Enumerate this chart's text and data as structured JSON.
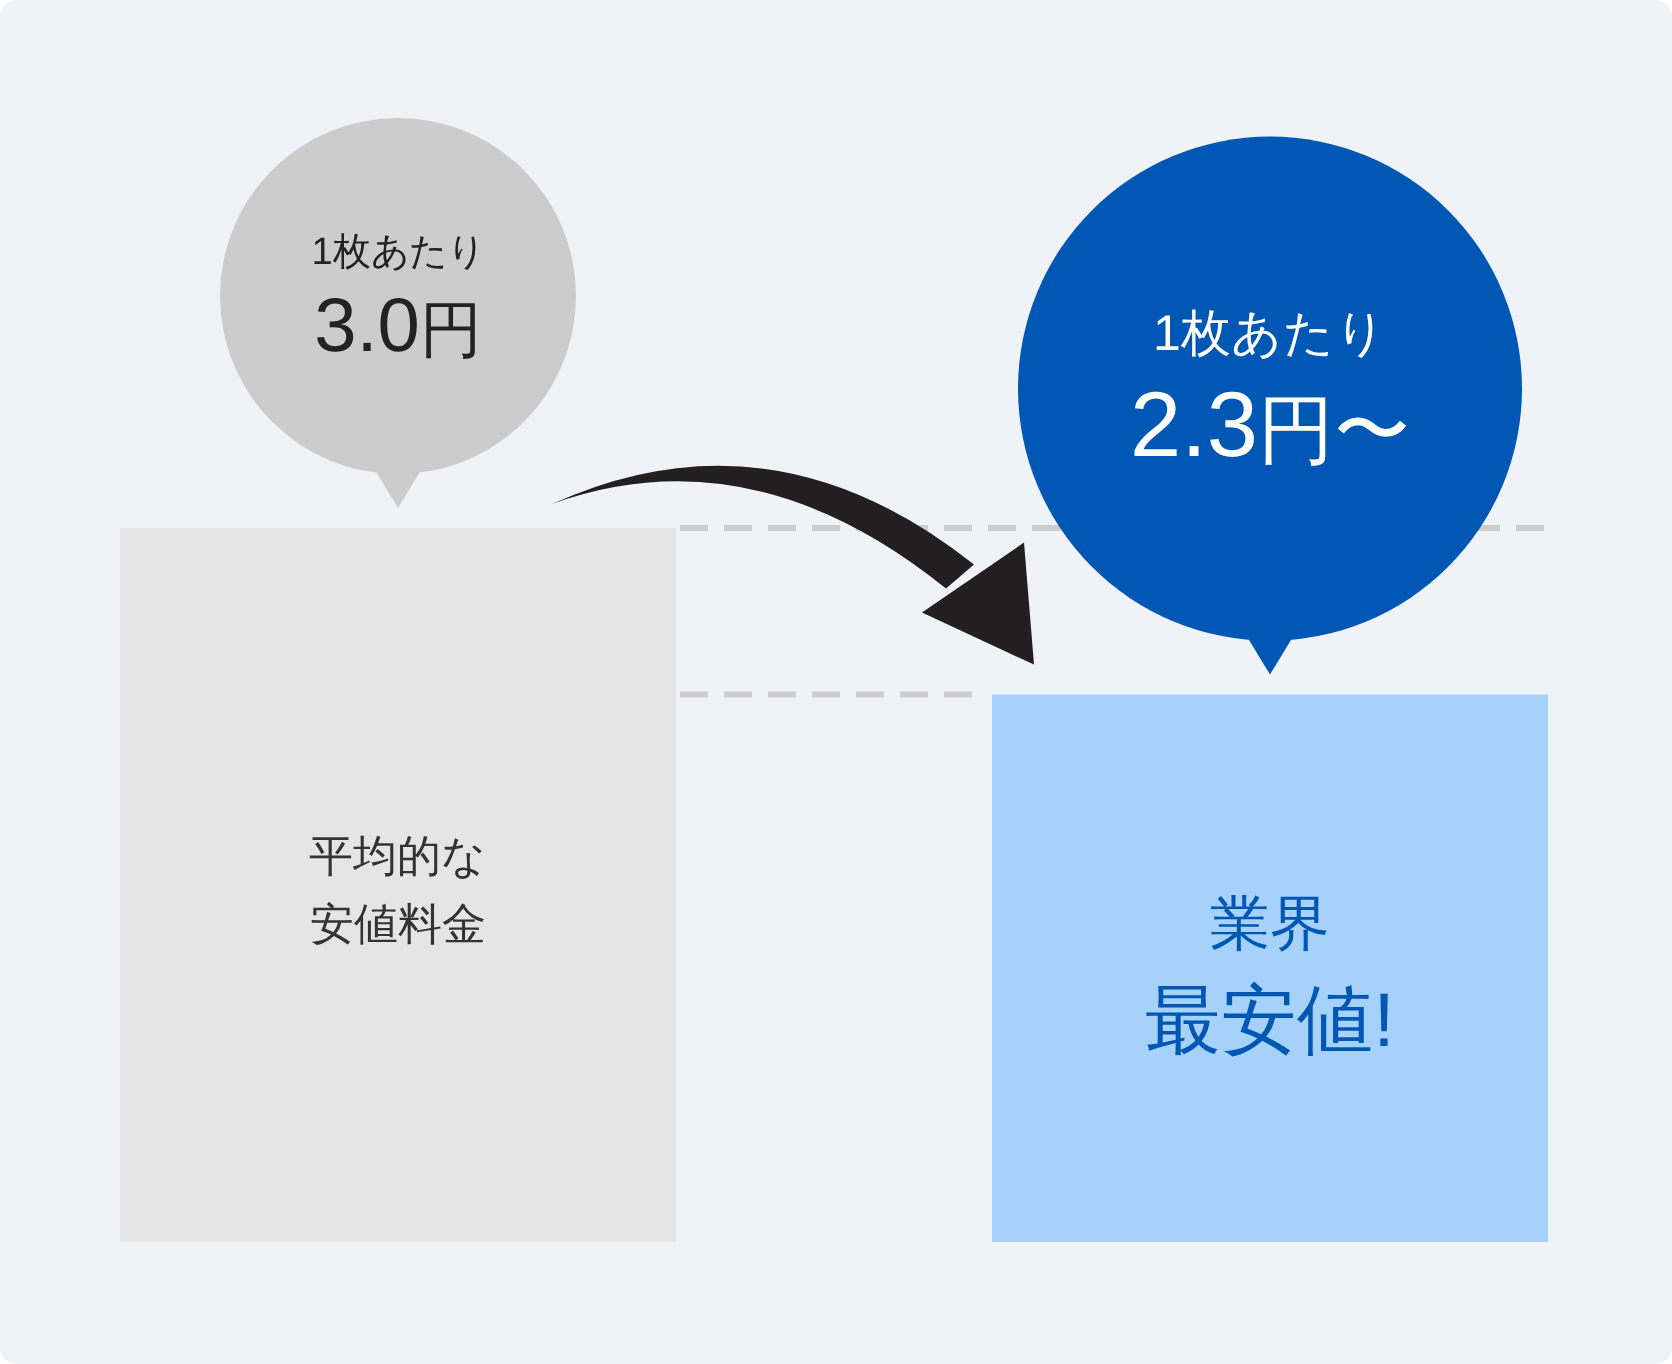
{
  "chart_data": {
    "type": "bar",
    "categories": [
      "平均的な安値料金",
      "業界最安値!"
    ],
    "values": [
      3.0,
      2.3
    ],
    "colors": [
      "#e5e5e5",
      "#a6d1fb"
    ],
    "value_labels": [
      "1枚あたり\n3.0円",
      "1枚あたり\n2.3円〜"
    ],
    "ref_lines": [
      {
        "axis": "y",
        "value": 3.0,
        "color": "#cccccc",
        "line_style": "dashed"
      },
      {
        "axis": "y",
        "value": 2.3,
        "color": "#cccccc",
        "line_style": "dashed"
      }
    ]
  }
}
